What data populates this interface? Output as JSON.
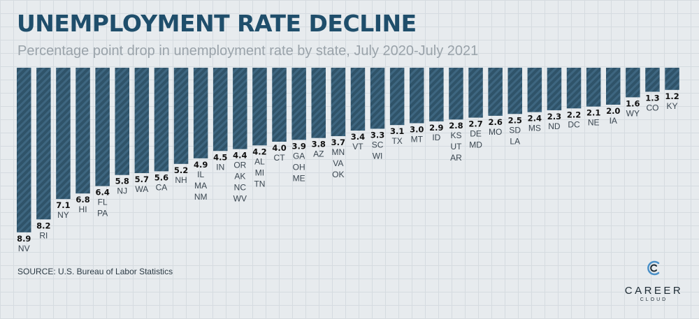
{
  "header": {
    "title": "UNEMPLOYMENT RATE DECLINE",
    "subtitle": "Percentage point drop in unemployment rate by state, July 2020-July 2021"
  },
  "footer": {
    "source": "SOURCE: U.S. Bureau of Labor Statistics",
    "logo_word": "CAREER",
    "logo_sub": "CLOUD"
  },
  "colors": {
    "bar": "#2f5369",
    "bar_stripe": "#3e6680",
    "value_label": "#111111",
    "state_label": "#3a4650",
    "title": "#1f4e6b",
    "logo_accent": "#4a90c8"
  },
  "chart_data": {
    "type": "bar",
    "title": "UNEMPLOYMENT RATE DECLINE",
    "subtitle": "Percentage point drop in unemployment rate by state, July 2020-July 2021",
    "orientation": "vertical-hanging",
    "grid": true,
    "values": [
      8.9,
      8.2,
      7.1,
      6.8,
      6.4,
      5.8,
      5.7,
      5.6,
      5.2,
      4.9,
      4.5,
      4.4,
      4.2,
      4.0,
      3.9,
      3.8,
      3.7,
      3.4,
      3.3,
      3.1,
      3.0,
      2.9,
      2.8,
      2.7,
      2.6,
      2.5,
      2.4,
      2.3,
      2.2,
      2.1,
      2.0,
      1.6,
      1.3,
      1.2
    ],
    "value_labels": [
      "8.9",
      "8.2",
      "7.1",
      "6.8",
      "6.4",
      "5.8",
      "5.7",
      "5.6",
      "5.2",
      "4.9",
      "4.5",
      "4.4",
      "4.2",
      "4.0",
      "3.9",
      "3.8",
      "3.7",
      "3.4",
      "3.3",
      "3.1",
      "3.0",
      "2.9",
      "2.8",
      "2.7",
      "2.6",
      "2.5",
      "2.4",
      "2.3",
      "2.2",
      "2.1",
      "2.0",
      "1.6",
      "1.3",
      "1.2"
    ],
    "categories": [
      [
        "NV"
      ],
      [
        "RI"
      ],
      [
        "NY"
      ],
      [
        "HI"
      ],
      [
        "FL",
        "PA"
      ],
      [
        "NJ"
      ],
      [
        "WA"
      ],
      [
        "CA"
      ],
      [
        "NH"
      ],
      [
        "IL",
        "MA",
        "NM"
      ],
      [
        "IN"
      ],
      [
        "OR",
        "AK",
        "NC",
        "WV"
      ],
      [
        "AL",
        "MI",
        "TN"
      ],
      [
        "CT"
      ],
      [
        "GA",
        "OH",
        "ME"
      ],
      [
        "AZ"
      ],
      [
        "MN",
        "VA",
        "OK"
      ],
      [
        "VT"
      ],
      [
        "SC",
        "WI"
      ],
      [
        "TX"
      ],
      [
        "MT"
      ],
      [
        "ID"
      ],
      [
        "KS",
        "UT",
        "AR"
      ],
      [
        "DE",
        "MD"
      ],
      [
        "MO"
      ],
      [
        "SD",
        "LA"
      ],
      [
        "MS"
      ],
      [
        "ND"
      ],
      [
        "DC"
      ],
      [
        "NE"
      ],
      [
        "IA"
      ],
      [
        "WY"
      ],
      [
        "CO"
      ],
      [
        "KY"
      ]
    ]
  }
}
